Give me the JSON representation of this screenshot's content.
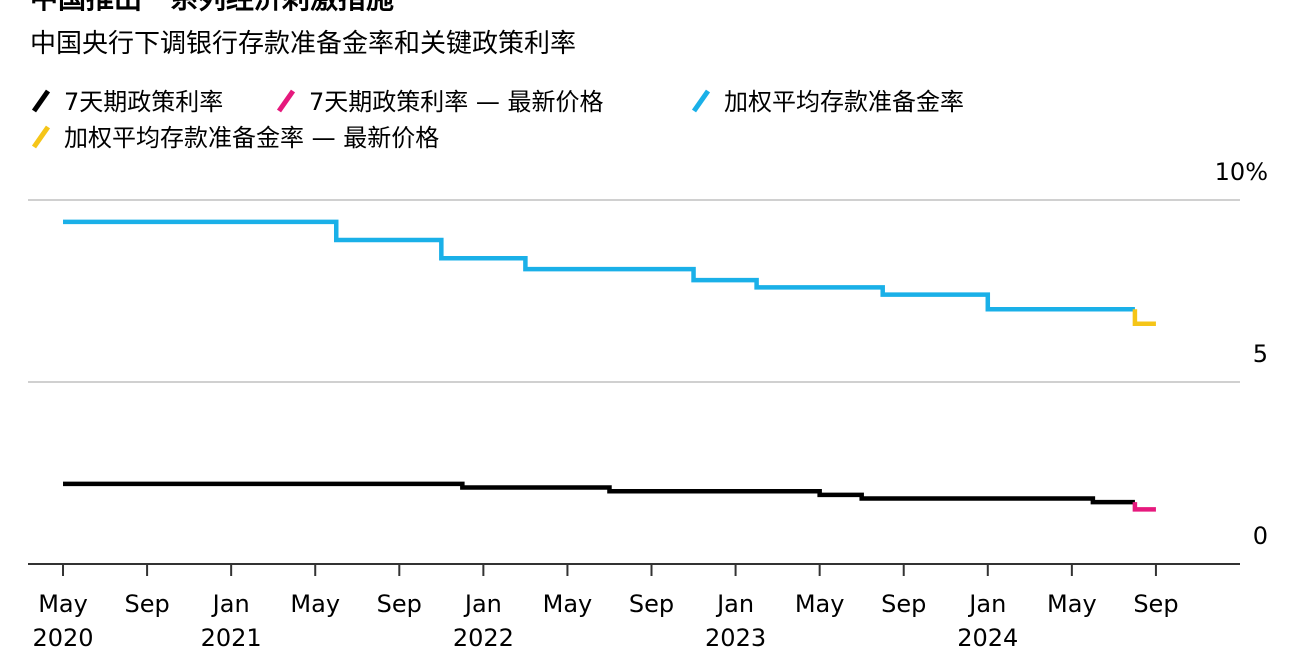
{
  "chart_data": {
    "type": "step",
    "title": "中国推出一系列经济刺激措施",
    "subtitle": "中国央行下调银行存款准备金率和关键政策利率",
    "series": [
      {
        "name": "7天期政策利率",
        "color": "#000000",
        "x": [
          "2020-05",
          "2021-12",
          "2022-07",
          "2023-05",
          "2023-07",
          "2024-06",
          "2024-08"
        ],
        "values": [
          2.2,
          2.1,
          2.0,
          1.9,
          1.8,
          1.7,
          1.7
        ]
      },
      {
        "name": "7天期政策利率 — 最新价格",
        "color": "#e6197d",
        "x": [
          "2024-08",
          "2024-09"
        ],
        "values": [
          1.5,
          1.5
        ]
      },
      {
        "name": "加权平均存款准备金率",
        "color": "#1ab0e8",
        "x": [
          "2020-05",
          "2021-06",
          "2021-11",
          "2022-03",
          "2022-11",
          "2023-02",
          "2023-08",
          "2024-01",
          "2024-08"
        ],
        "values": [
          9.4,
          8.9,
          8.4,
          8.1,
          7.8,
          7.6,
          7.4,
          7.0,
          7.0
        ]
      },
      {
        "name": "加权平均存款准备金率 — 最新价格",
        "color": "#f5c518",
        "x": [
          "2024-08",
          "2024-09"
        ],
        "values": [
          6.6,
          6.6
        ]
      }
    ],
    "xlim": [
      "2020-04",
      "2025-01"
    ],
    "xticks": [
      {
        "value": "2020-05",
        "label": "May 2020"
      },
      {
        "value": "2020-09",
        "label": "Sep"
      },
      {
        "value": "2021-01",
        "label": "Jan 2021"
      },
      {
        "value": "2021-05",
        "label": "May"
      },
      {
        "value": "2021-09",
        "label": "Sep"
      },
      {
        "value": "2022-01",
        "label": "Jan 2022"
      },
      {
        "value": "2022-05",
        "label": "May"
      },
      {
        "value": "2022-09",
        "label": "Sep"
      },
      {
        "value": "2023-01",
        "label": "Jan 2023"
      },
      {
        "value": "2023-05",
        "label": "May"
      },
      {
        "value": "2023-09",
        "label": "Sep"
      },
      {
        "value": "2024-01",
        "label": "Jan 2024"
      },
      {
        "value": "2024-05",
        "label": "May"
      },
      {
        "value": "2024-09",
        "label": "Sep"
      }
    ],
    "ylim": [
      0,
      10
    ],
    "yticks": [
      0,
      5,
      {
        "value": 10,
        "label": "10%"
      }
    ],
    "grid": true
  }
}
